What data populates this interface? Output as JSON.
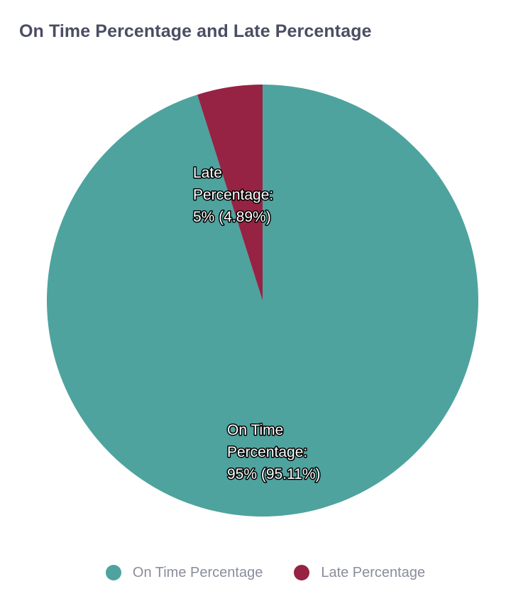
{
  "chart_data": {
    "type": "pie",
    "title": "On Time Percentage and Late Percentage",
    "slices": [
      {
        "name": "On Time Percentage",
        "value": 95.11,
        "label_lines": [
          "On Time",
          "Percentage:",
          "95% (95.11%)"
        ],
        "color": "#4ea39e"
      },
      {
        "name": "Late Percentage",
        "value": 4.89,
        "label_lines": [
          "Late",
          "Percentage:",
          "5% (4.89%)"
        ],
        "color": "#962343"
      }
    ],
    "legend": {
      "position": "bottom-center",
      "entries": [
        "On Time Percentage",
        "Late Percentage"
      ]
    }
  }
}
